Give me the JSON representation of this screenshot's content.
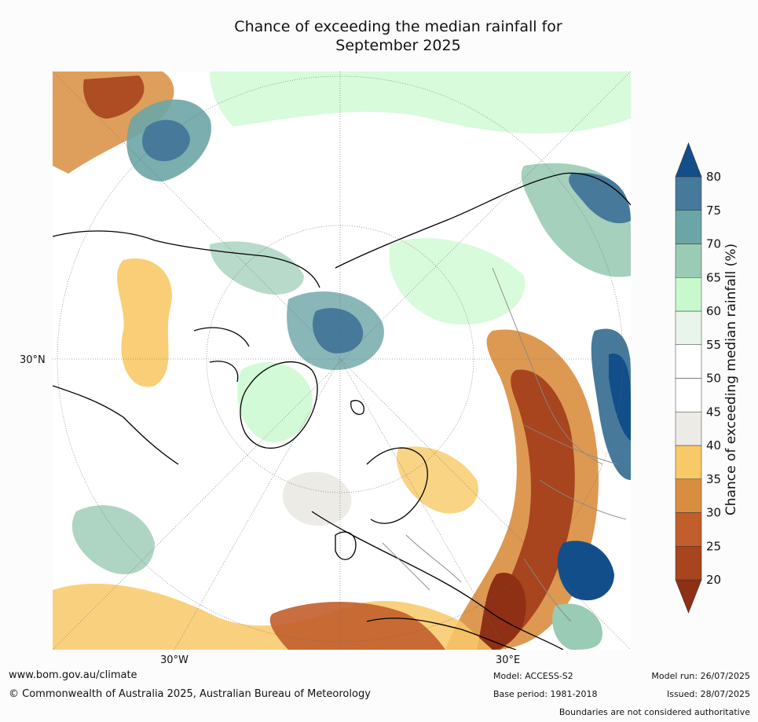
{
  "title": {
    "line1": "Chance of exceeding the median rainfall for",
    "line2": "September 2025"
  },
  "map": {
    "projection": "north polar stereographic",
    "lat_label": "30°N",
    "lon_labels": [
      "30°W",
      "30°E"
    ]
  },
  "colorbar": {
    "label": "Chance of exceeding median rainfall (%)",
    "ticks": [
      "20",
      "25",
      "30",
      "35",
      "40",
      "45",
      "50",
      "55",
      "60",
      "65",
      "70",
      "75",
      "80"
    ],
    "bins": [
      {
        "range": "<20",
        "color": "#8f2f14"
      },
      {
        "range": "20-25",
        "color": "#a8441e"
      },
      {
        "range": "25-30",
        "color": "#c25e2c"
      },
      {
        "range": "30-35",
        "color": "#d98e3f"
      },
      {
        "range": "35-40",
        "color": "#f8c967"
      },
      {
        "range": "40-45",
        "color": "#ecebe6"
      },
      {
        "range": "45-50",
        "color": "#ffffff"
      },
      {
        "range": "50-55",
        "color": "#ffffff"
      },
      {
        "range": "55-60",
        "color": "#e9f5ea"
      },
      {
        "range": "60-65",
        "color": "#c8f9cc"
      },
      {
        "range": "65-70",
        "color": "#9acbb5"
      },
      {
        "range": "70-75",
        "color": "#6ba5a6"
      },
      {
        "range": "75-80",
        "color": "#47799a"
      },
      {
        "range": ">80",
        "color": "#124f8a"
      }
    ]
  },
  "footer": {
    "link": "www.bom.gov.au/climate",
    "copyright": "© Commonwealth of Australia 2025, Australian Bureau of Meteorology",
    "model": "Model: ACCESS-S2",
    "base_period": "Base period: 1981-2018",
    "model_run": "Model run: 26/07/2025",
    "issued": "Issued: 28/07/2025",
    "disclaimer": "Boundaries are not considered authoritative"
  }
}
